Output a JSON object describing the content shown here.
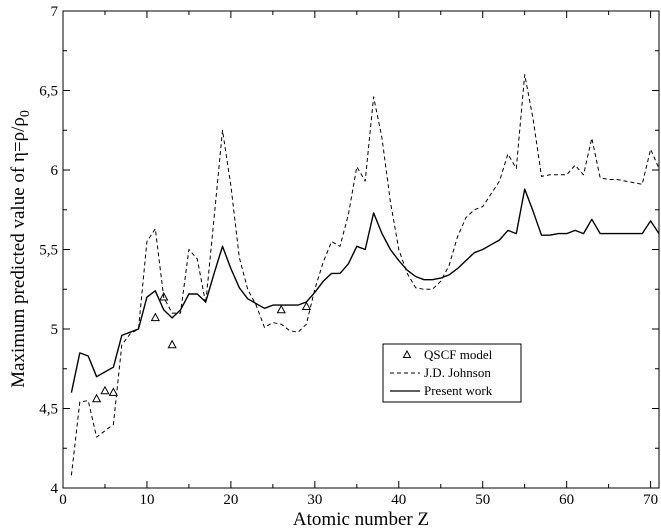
{
  "chart_data": {
    "type": "line",
    "xlabel": "Atomic number Z",
    "ylabel": "Maximum predicted value of η=ρ/ρ",
    "ylabel_subscript": "0",
    "xlim": [
      0,
      71
    ],
    "ylim": [
      4,
      7
    ],
    "x_ticks": [
      "0",
      "10",
      "20",
      "30",
      "40",
      "50",
      "60",
      "70"
    ],
    "y_ticks": [
      "4",
      "4,5",
      "5",
      "5,5",
      "6",
      "6,5",
      "7"
    ],
    "grid": false,
    "legend_position": "lower-right",
    "series": [
      {
        "name": "QSCF model",
        "style": "triangle-markers",
        "color": "#000000",
        "x": [
          4,
          5,
          6,
          11,
          12,
          13,
          26,
          29
        ],
        "y": [
          4.56,
          4.61,
          4.6,
          5.07,
          5.2,
          4.9,
          5.12,
          5.14
        ]
      },
      {
        "name": "J.D. Johnson",
        "style": "dashed",
        "color": "#000000",
        "x": [
          1,
          2,
          3,
          4,
          5,
          6,
          7,
          8,
          9,
          10,
          11,
          12,
          13,
          14,
          15,
          16,
          17,
          18,
          19,
          20,
          21,
          22,
          23,
          24,
          25,
          26,
          27,
          28,
          29,
          30,
          31,
          32,
          33,
          34,
          35,
          36,
          37,
          38,
          39,
          40,
          41,
          42,
          43,
          44,
          45,
          46,
          47,
          48,
          49,
          50,
          51,
          52,
          53,
          54,
          55,
          56,
          57,
          58,
          59,
          60,
          61,
          62,
          63,
          64,
          65,
          66,
          67,
          68,
          69,
          70,
          71
        ],
        "y": [
          4.08,
          4.54,
          4.55,
          4.32,
          4.36,
          4.4,
          4.9,
          4.97,
          5.0,
          5.55,
          5.63,
          5.2,
          5.1,
          5.1,
          5.5,
          5.44,
          5.16,
          5.7,
          6.25,
          5.9,
          5.45,
          5.25,
          5.15,
          5.01,
          5.04,
          5.03,
          4.99,
          4.98,
          5.03,
          5.25,
          5.42,
          5.55,
          5.52,
          5.72,
          6.02,
          5.93,
          6.46,
          6.2,
          5.8,
          5.5,
          5.35,
          5.26,
          5.25,
          5.25,
          5.3,
          5.4,
          5.58,
          5.7,
          5.75,
          5.77,
          5.85,
          5.93,
          6.1,
          6.01,
          6.6,
          6.32,
          5.96,
          5.97,
          5.97,
          5.97,
          6.03,
          5.97,
          6.2,
          5.95,
          5.94,
          5.94,
          5.93,
          5.92,
          5.91,
          6.13,
          6.01
        ]
      },
      {
        "name": "Present work",
        "style": "solid",
        "color": "#000000",
        "x": [
          1,
          2,
          3,
          4,
          5,
          6,
          7,
          8,
          9,
          10,
          11,
          12,
          13,
          14,
          15,
          16,
          17,
          18,
          19,
          20,
          21,
          22,
          23,
          24,
          25,
          26,
          27,
          28,
          29,
          30,
          31,
          32,
          33,
          34,
          35,
          36,
          37,
          38,
          39,
          40,
          41,
          42,
          43,
          44,
          45,
          46,
          47,
          48,
          49,
          50,
          51,
          52,
          53,
          54,
          55,
          56,
          57,
          58,
          59,
          60,
          61,
          62,
          63,
          64,
          65,
          66,
          67,
          68,
          69,
          70,
          71
        ],
        "y": [
          4.6,
          4.85,
          4.83,
          4.7,
          4.73,
          4.76,
          4.96,
          4.98,
          5.0,
          5.2,
          5.24,
          5.12,
          5.07,
          5.12,
          5.22,
          5.22,
          5.17,
          5.35,
          5.52,
          5.38,
          5.26,
          5.19,
          5.16,
          5.13,
          5.15,
          5.15,
          5.15,
          5.15,
          5.17,
          5.23,
          5.3,
          5.35,
          5.35,
          5.41,
          5.52,
          5.5,
          5.73,
          5.6,
          5.5,
          5.43,
          5.37,
          5.33,
          5.31,
          5.31,
          5.32,
          5.34,
          5.38,
          5.43,
          5.48,
          5.5,
          5.53,
          5.56,
          5.62,
          5.6,
          5.88,
          5.74,
          5.59,
          5.59,
          5.6,
          5.6,
          5.62,
          5.6,
          5.69,
          5.6,
          5.6,
          5.6,
          5.6,
          5.6,
          5.6,
          5.68,
          5.6
        ]
      }
    ]
  }
}
